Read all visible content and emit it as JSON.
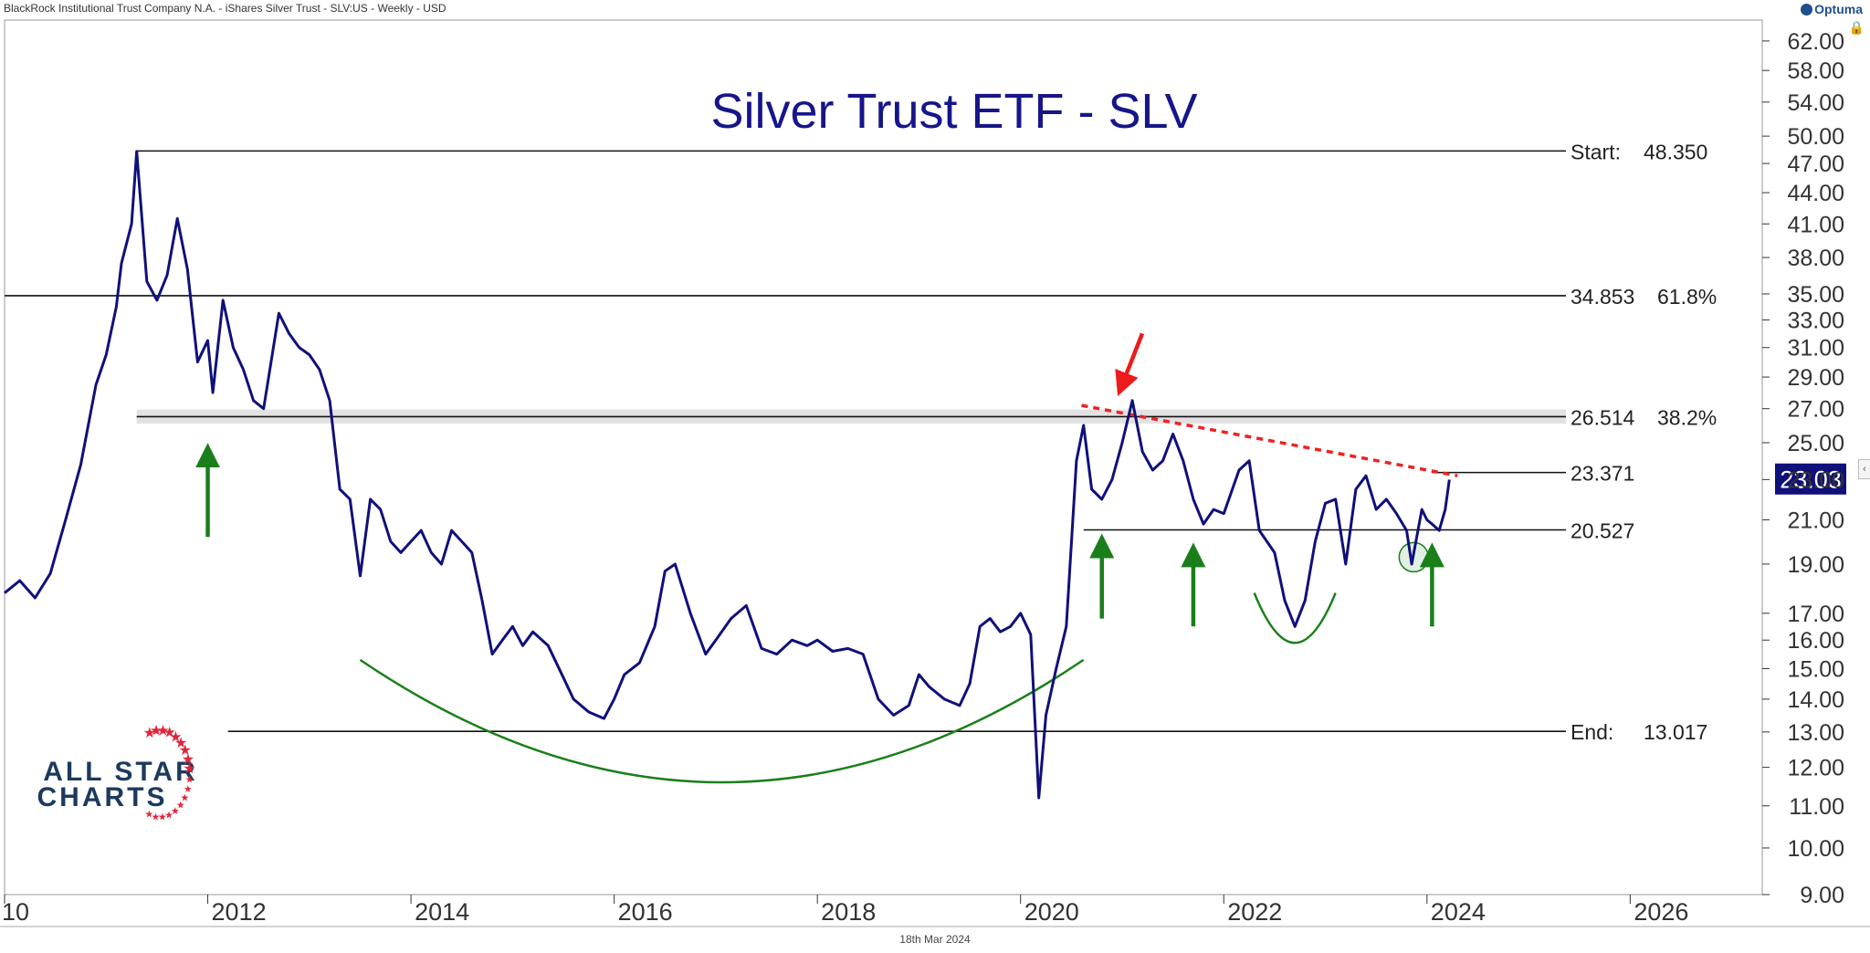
{
  "header": {
    "source": "BlackRock Institutional Trust Company N.A. - iShares Silver Trust - SLV:US - Weekly - USD",
    "brand": "Optuma"
  },
  "footer": {
    "date": "18th Mar 2024"
  },
  "logo": {
    "line1": "ALL STAR",
    "line2": "CHARTS"
  },
  "colors": {
    "price_line": "#10107a",
    "title": "#16168a",
    "support_arrow": "#1a7f1a",
    "resistance_arrow": "#ee1b1b",
    "trendline": "#ee2222",
    "last_price_bg": "#10107a",
    "logo_text": "#1c3a5e",
    "logo_star": "#e0243a"
  },
  "chart_data": {
    "type": "line",
    "title": "Silver Trust ETF - SLV",
    "xlabel": "",
    "ylabel": "",
    "x_ticks": [
      "10",
      "2012",
      "2014",
      "2016",
      "2018",
      "2020",
      "2022",
      "2024",
      "2026"
    ],
    "y_ticks": [
      "9.00",
      "10.00",
      "11.00",
      "12.00",
      "13.00",
      "14.00",
      "15.00",
      "16.00",
      "17.00",
      "19.00",
      "21.00",
      "23.00",
      "25.00",
      "27.00",
      "29.00",
      "31.00",
      "33.00",
      "35.00",
      "38.00",
      "41.00",
      "44.00",
      "47.00",
      "50.00",
      "54.00",
      "58.00",
      "62.00"
    ],
    "y_scale": "log",
    "xlim": [
      2010.0,
      2027.3
    ],
    "ylim": [
      9.0,
      65.0
    ],
    "last_price": "23.03",
    "grid": false,
    "series": [
      {
        "points": [
          [
            2010.0,
            17.8
          ],
          [
            2010.15,
            18.3
          ],
          [
            2010.3,
            17.6
          ],
          [
            2010.45,
            18.6
          ],
          [
            2010.6,
            21.0
          ],
          [
            2010.75,
            23.8
          ],
          [
            2010.9,
            28.5
          ],
          [
            2011.0,
            30.5
          ],
          [
            2011.1,
            34.0
          ],
          [
            2011.15,
            37.5
          ],
          [
            2011.25,
            41.0
          ],
          [
            2011.3,
            48.3
          ],
          [
            2011.4,
            36.0
          ],
          [
            2011.5,
            34.5
          ],
          [
            2011.6,
            36.5
          ],
          [
            2011.7,
            41.5
          ],
          [
            2011.8,
            37.0
          ],
          [
            2011.9,
            30.0
          ],
          [
            2012.0,
            31.5
          ],
          [
            2012.05,
            28.0
          ],
          [
            2012.15,
            34.5
          ],
          [
            2012.25,
            31.0
          ],
          [
            2012.35,
            29.5
          ],
          [
            2012.45,
            27.5
          ],
          [
            2012.55,
            27.0
          ],
          [
            2012.7,
            33.5
          ],
          [
            2012.8,
            32.0
          ],
          [
            2012.9,
            31.0
          ],
          [
            2013.0,
            30.5
          ],
          [
            2013.1,
            29.5
          ],
          [
            2013.2,
            27.5
          ],
          [
            2013.3,
            22.5
          ],
          [
            2013.4,
            22.0
          ],
          [
            2013.5,
            18.5
          ],
          [
            2013.6,
            22.0
          ],
          [
            2013.7,
            21.5
          ],
          [
            2013.8,
            20.0
          ],
          [
            2013.9,
            19.5
          ],
          [
            2014.0,
            20.0
          ],
          [
            2014.1,
            20.5
          ],
          [
            2014.2,
            19.5
          ],
          [
            2014.3,
            19.0
          ],
          [
            2014.4,
            20.5
          ],
          [
            2014.5,
            20.0
          ],
          [
            2014.6,
            19.5
          ],
          [
            2014.7,
            17.5
          ],
          [
            2014.8,
            15.5
          ],
          [
            2014.9,
            16.0
          ],
          [
            2015.0,
            16.5
          ],
          [
            2015.1,
            15.8
          ],
          [
            2015.2,
            16.3
          ],
          [
            2015.35,
            15.8
          ],
          [
            2015.5,
            14.7
          ],
          [
            2015.6,
            14.0
          ],
          [
            2015.75,
            13.6
          ],
          [
            2015.9,
            13.4
          ],
          [
            2016.0,
            14.0
          ],
          [
            2016.1,
            14.8
          ],
          [
            2016.25,
            15.2
          ],
          [
            2016.4,
            16.5
          ],
          [
            2016.5,
            18.7
          ],
          [
            2016.6,
            19.0
          ],
          [
            2016.75,
            17.0
          ],
          [
            2016.9,
            15.5
          ],
          [
            2017.0,
            16.0
          ],
          [
            2017.15,
            16.8
          ],
          [
            2017.3,
            17.3
          ],
          [
            2017.45,
            15.7
          ],
          [
            2017.6,
            15.5
          ],
          [
            2017.75,
            16.0
          ],
          [
            2017.9,
            15.8
          ],
          [
            2018.0,
            16.0
          ],
          [
            2018.15,
            15.6
          ],
          [
            2018.3,
            15.7
          ],
          [
            2018.45,
            15.5
          ],
          [
            2018.6,
            14.0
          ],
          [
            2018.75,
            13.5
          ],
          [
            2018.9,
            13.8
          ],
          [
            2019.0,
            14.8
          ],
          [
            2019.1,
            14.4
          ],
          [
            2019.25,
            14.0
          ],
          [
            2019.4,
            13.8
          ],
          [
            2019.5,
            14.5
          ],
          [
            2019.6,
            16.5
          ],
          [
            2019.7,
            16.8
          ],
          [
            2019.8,
            16.3
          ],
          [
            2019.9,
            16.5
          ],
          [
            2020.0,
            17.0
          ],
          [
            2020.1,
            16.2
          ],
          [
            2020.18,
            11.2
          ],
          [
            2020.25,
            13.5
          ],
          [
            2020.35,
            15.0
          ],
          [
            2020.45,
            16.5
          ],
          [
            2020.55,
            24.0
          ],
          [
            2020.62,
            26.0
          ],
          [
            2020.7,
            22.5
          ],
          [
            2020.8,
            22.0
          ],
          [
            2020.9,
            23.0
          ],
          [
            2021.0,
            25.0
          ],
          [
            2021.1,
            27.5
          ],
          [
            2021.2,
            24.5
          ],
          [
            2021.3,
            23.5
          ],
          [
            2021.4,
            24.0
          ],
          [
            2021.5,
            25.5
          ],
          [
            2021.6,
            24.0
          ],
          [
            2021.7,
            22.0
          ],
          [
            2021.8,
            20.8
          ],
          [
            2021.9,
            21.5
          ],
          [
            2022.0,
            21.3
          ],
          [
            2022.15,
            23.5
          ],
          [
            2022.25,
            24.0
          ],
          [
            2022.35,
            20.5
          ],
          [
            2022.5,
            19.5
          ],
          [
            2022.6,
            17.5
          ],
          [
            2022.7,
            16.5
          ],
          [
            2022.8,
            17.5
          ],
          [
            2022.9,
            20.0
          ],
          [
            2023.0,
            21.8
          ],
          [
            2023.1,
            22.0
          ],
          [
            2023.2,
            19.0
          ],
          [
            2023.3,
            22.5
          ],
          [
            2023.4,
            23.2
          ],
          [
            2023.5,
            21.5
          ],
          [
            2023.6,
            22.0
          ],
          [
            2023.7,
            21.3
          ],
          [
            2023.8,
            20.5
          ],
          [
            2023.85,
            19.0
          ],
          [
            2023.95,
            21.5
          ],
          [
            2024.0,
            21.0
          ],
          [
            2024.05,
            20.8
          ],
          [
            2024.12,
            20.5
          ],
          [
            2024.18,
            21.5
          ],
          [
            2024.22,
            23.0
          ]
        ]
      }
    ],
    "horizontal_levels": [
      {
        "label": "Start:",
        "value": "48.350",
        "y": 48.35,
        "x_start": 2011.3,
        "pct": ""
      },
      {
        "label": "34.853",
        "value": "",
        "y": 34.853,
        "x_start": 2010.0,
        "pct": "61.8%"
      },
      {
        "label": "26.514",
        "value": "",
        "y": 26.514,
        "x_start": 2011.3,
        "pct": "38.2%"
      },
      {
        "label": "23.371",
        "value": "",
        "y": 23.371,
        "x_start": 2024.05,
        "pct": ""
      },
      {
        "label": "20.527",
        "value": "",
        "y": 20.527,
        "x_start": 2020.62,
        "pct": ""
      },
      {
        "label": "End:",
        "value": "13.017",
        "y": 13.017,
        "x_start": 2012.2,
        "pct": ""
      }
    ],
    "trendline": {
      "x": [
        2020.6,
        2024.3
      ],
      "y": [
        27.2,
        23.2
      ]
    },
    "annotations": [
      {
        "type": "up-arrow",
        "x": 2012.0,
        "y_tip": 24.3,
        "y_tail": 20.2
      },
      {
        "type": "up-arrow",
        "x": 2020.8,
        "y_tip": 19.8,
        "y_tail": 16.8
      },
      {
        "type": "up-arrow",
        "x": 2021.7,
        "y_tip": 19.4,
        "y_tail": 16.5
      },
      {
        "type": "up-arrow",
        "x": 2024.05,
        "y_tip": 19.4,
        "y_tail": 16.5
      },
      {
        "type": "down-arrow",
        "x": 2021.0,
        "y_tip": 28.5,
        "y_tail": 32.0
      },
      {
        "type": "circle",
        "x": 2023.87,
        "y": 19.3
      },
      {
        "type": "arc-large",
        "x_start": 2013.5,
        "x_end": 2020.62,
        "y_top": 15.3,
        "y_bottom": 11.6
      },
      {
        "type": "arc-small",
        "x_start": 2022.3,
        "x_end": 2023.1,
        "y_top": 17.8,
        "y_bottom": 15.9
      }
    ]
  }
}
